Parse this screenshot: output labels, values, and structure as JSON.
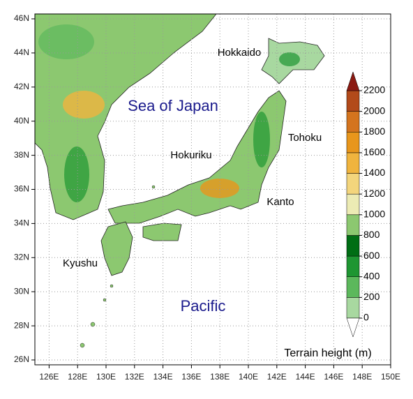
{
  "map": {
    "lat_ticks": [
      {
        "value": 46,
        "label": "46N"
      },
      {
        "value": 44,
        "label": "44N"
      },
      {
        "value": 42,
        "label": "42N"
      },
      {
        "value": 40,
        "label": "40N"
      },
      {
        "value": 38,
        "label": "38N"
      },
      {
        "value": 36,
        "label": "36N"
      },
      {
        "value": 34,
        "label": "34N"
      },
      {
        "value": 32,
        "label": "32N"
      },
      {
        "value": 30,
        "label": "30N"
      },
      {
        "value": 28,
        "label": "28N"
      },
      {
        "value": 26,
        "label": "26N"
      }
    ],
    "lon_ticks": [
      {
        "value": 126,
        "label": "126E"
      },
      {
        "value": 128,
        "label": "128E"
      },
      {
        "value": 130,
        "label": "130E"
      },
      {
        "value": 132,
        "label": "132E"
      },
      {
        "value": 134,
        "label": "134E"
      },
      {
        "value": 136,
        "label": "136E"
      },
      {
        "value": 138,
        "label": "138E"
      },
      {
        "value": 140,
        "label": "140E"
      },
      {
        "value": 142,
        "label": "142E"
      },
      {
        "value": 144,
        "label": "144E"
      },
      {
        "value": 146,
        "label": "146E"
      },
      {
        "value": 148,
        "label": "148E"
      },
      {
        "value": 150,
        "label": "150E"
      }
    ],
    "labels": {
      "sea": "Sea of Japan",
      "hokkaido": "Hokkaido",
      "tohoku": "Tohoku",
      "hokuriku": "Hokuriku",
      "kanto": "Kanto",
      "kyushu": "Kyushu",
      "pacific": "Pacific"
    },
    "colorbar": {
      "title": "Terrain height (m)",
      "ticks": [
        0,
        200,
        400,
        600,
        800,
        1000,
        1200,
        1400,
        1600,
        1800,
        2000,
        2200
      ],
      "colors": [
        "#a8d8a0",
        "#5cb85c",
        "#1e9632",
        "#006e14",
        "#8cc870",
        "#ecebb4",
        "#f3d57c",
        "#f0b43e",
        "#e8961c",
        "#d4741e",
        "#b24a1a"
      ],
      "over_color": "#8b1a12",
      "under_color": "#ffffff"
    }
  }
}
